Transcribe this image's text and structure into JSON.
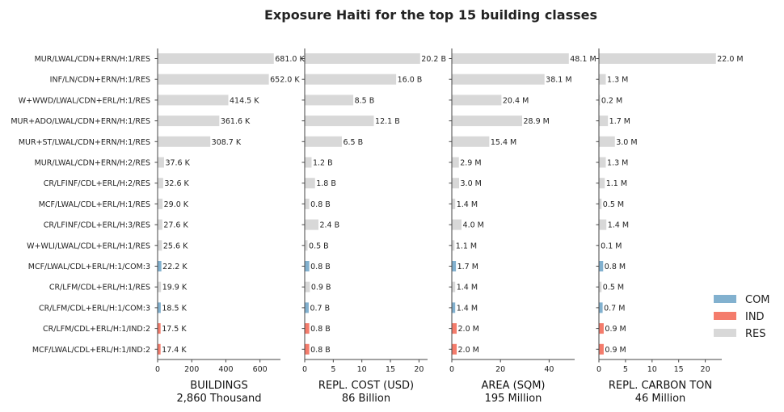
{
  "chart_data": {
    "type": "bar",
    "title": "Exposure Haiti for the top 15 building classes",
    "categories": [
      "MUR/LWAL/CDN+ERN/H:1/RES",
      "INF/LN/CDN+ERN/H:1/RES",
      "W+WWD/LWAL/CDN+ERL/H:1/RES",
      "MUR+ADO/LWAL/CDN+ERN/H:1/RES",
      "MUR+ST/LWAL/CDN+ERN/H:1/RES",
      "MUR/LWAL/CDN+ERN/H:2/RES",
      "CR/LFINF/CDL+ERL/H:2/RES",
      "MCF/LWAL/CDL+ERL/H:1/RES",
      "CR/LFINF/CDL+ERL/H:3/RES",
      "W+WLI/LWAL/CDL+ERL/H:1/RES",
      "MCF/LWAL/CDL+ERL/H:1/COM:3",
      "CR/LFM/CDL+ERL/H:1/RES",
      "CR/LFM/CDL+ERL/H:1/COM:3",
      "CR/LFM/CDL+ERL/H:1/IND:2",
      "MCF/LWAL/CDL+ERL/H:1/IND:2"
    ],
    "occupancy": [
      "RES",
      "RES",
      "RES",
      "RES",
      "RES",
      "RES",
      "RES",
      "RES",
      "RES",
      "RES",
      "COM",
      "RES",
      "COM",
      "IND",
      "IND"
    ],
    "colors": {
      "COM": "#82b1cf",
      "IND": "#f47c6c",
      "RES": "#d8d8d8"
    },
    "legend": [
      "COM",
      "IND",
      "RES"
    ],
    "legend_placement": "right",
    "grid": false,
    "panels": [
      {
        "xlabel": "BUILDINGS",
        "total": "2,860 Thousand",
        "xlim": [
          0,
          720
        ],
        "ticks": [
          0,
          200,
          400,
          600
        ],
        "tick_labels": [
          "0",
          "200",
          "400",
          "600"
        ],
        "values": [
          681.0,
          652.0,
          414.5,
          361.6,
          308.7,
          37.6,
          32.6,
          29.0,
          27.6,
          25.6,
          22.2,
          19.9,
          18.5,
          17.5,
          17.4
        ],
        "labels": [
          "681.0 K",
          "652.0 K",
          "414.5 K",
          "361.6 K",
          "308.7 K",
          "37.6 K",
          "32.6 K",
          "29.0 K",
          "27.6 K",
          "25.6 K",
          "22.2 K",
          "19.9 K",
          "18.5 K",
          "17.5 K",
          "17.4 K"
        ]
      },
      {
        "xlabel": "REPL. COST (USD)",
        "total": "86 Billion",
        "xlim": [
          0,
          21.5
        ],
        "ticks": [
          0,
          5,
          10,
          15,
          20
        ],
        "tick_labels": [
          "0",
          "5",
          "10",
          "15",
          "20"
        ],
        "values": [
          20.2,
          16.0,
          8.5,
          12.1,
          6.5,
          1.2,
          1.8,
          0.8,
          2.4,
          0.5,
          0.8,
          0.9,
          0.7,
          0.8,
          0.8
        ],
        "labels": [
          "20.2 B",
          "16.0 B",
          "8.5 B",
          "12.1 B",
          "6.5 B",
          "1.2 B",
          "1.8 B",
          "0.8 B",
          "2.4 B",
          "0.5 B",
          "0.8 B",
          "0.9 B",
          "0.7 B",
          "0.8 B",
          "0.8 B"
        ]
      },
      {
        "xlabel": "AREA (SQM)",
        "total": "195 Million",
        "xlim": [
          0,
          50.5
        ],
        "ticks": [
          0,
          20,
          40
        ],
        "tick_labels": [
          "0",
          "20",
          "40"
        ],
        "values": [
          48.1,
          38.1,
          20.4,
          28.9,
          15.4,
          2.9,
          3.0,
          1.4,
          4.0,
          1.1,
          1.7,
          1.4,
          1.4,
          2.0,
          2.0
        ],
        "labels": [
          "48.1 M",
          "38.1 M",
          "20.4 M",
          "28.9 M",
          "15.4 M",
          "2.9 M",
          "3.0 M",
          "1.4 M",
          "4.0 M",
          "1.1 M",
          "1.7 M",
          "1.4 M",
          "1.4 M",
          "2.0 M",
          "2.0 M"
        ]
      },
      {
        "xlabel": "REPL. CARBON TON",
        "total": "46 Million",
        "xlim": [
          0,
          23.1
        ],
        "ticks": [
          0,
          5,
          10,
          15,
          20
        ],
        "tick_labels": [
          "0",
          "5",
          "10",
          "15",
          "20"
        ],
        "values": [
          22.0,
          1.3,
          0.2,
          1.7,
          3.0,
          1.3,
          1.1,
          0.5,
          1.4,
          0.1,
          0.8,
          0.5,
          0.7,
          0.9,
          0.9
        ],
        "labels": [
          "22.0 M",
          "1.3 M",
          "0.2 M",
          "1.7 M",
          "3.0 M",
          "1.3 M",
          "1.1 M",
          "0.5 M",
          "1.4 M",
          "0.1 M",
          "0.8 M",
          "0.5 M",
          "0.7 M",
          "0.9 M",
          "0.9 M"
        ]
      }
    ]
  }
}
